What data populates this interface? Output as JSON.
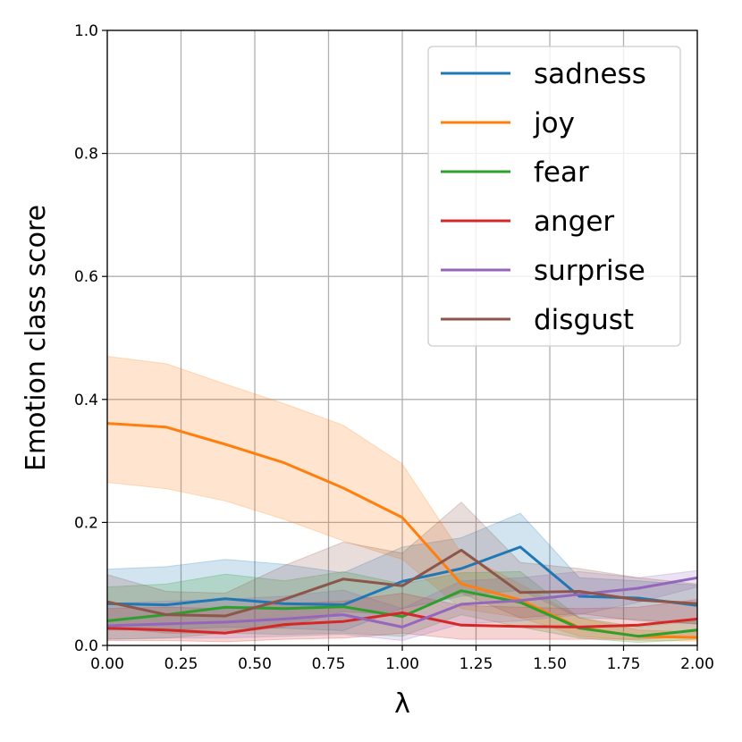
{
  "chart_data": {
    "type": "line",
    "title": "",
    "xlabel": "λ",
    "ylabel": "Emotion class score",
    "xlim": [
      0,
      2
    ],
    "ylim": [
      0,
      1
    ],
    "x_ticks": [
      "0.00",
      "0.25",
      "0.50",
      "0.75",
      "1.00",
      "1.25",
      "1.50",
      "1.75",
      "2.00"
    ],
    "y_ticks": [
      "0.0",
      "0.2",
      "0.4",
      "0.6",
      "0.8",
      "1.0"
    ],
    "grid": true,
    "legend_position": "top-right",
    "x": [
      0,
      0.2,
      0.4,
      0.6,
      0.8,
      1.0,
      1.2,
      1.4,
      1.6,
      1.8,
      2.0
    ],
    "series": [
      {
        "name": "sadness",
        "color": "#1f77b4",
        "values": [
          0.068,
          0.066,
          0.076,
          0.068,
          0.066,
          0.104,
          0.125,
          0.16,
          0.08,
          0.077,
          0.065
        ],
        "upper": [
          0.124,
          0.128,
          0.14,
          0.132,
          0.118,
          0.16,
          0.175,
          0.215,
          0.11,
          0.105,
          0.098
        ],
        "lower": [
          0.025,
          0.025,
          0.03,
          0.028,
          0.024,
          0.06,
          0.08,
          0.09,
          0.045,
          0.042,
          0.035
        ]
      },
      {
        "name": "joy",
        "color": "#ff7f0e",
        "values": [
          0.361,
          0.355,
          0.327,
          0.297,
          0.256,
          0.208,
          0.1,
          0.074,
          0.029,
          0.015,
          0.013
        ],
        "upper": [
          0.47,
          0.458,
          0.425,
          0.393,
          0.358,
          0.295,
          0.15,
          0.1,
          0.045,
          0.025,
          0.022
        ],
        "lower": [
          0.265,
          0.255,
          0.235,
          0.205,
          0.17,
          0.14,
          0.06,
          0.045,
          0.015,
          0.008,
          0.007
        ]
      },
      {
        "name": "fear",
        "color": "#2ca02c",
        "values": [
          0.04,
          0.05,
          0.062,
          0.06,
          0.063,
          0.047,
          0.089,
          0.07,
          0.028,
          0.015,
          0.025
        ],
        "upper": [
          0.095,
          0.1,
          0.116,
          0.105,
          0.12,
          0.1,
          0.118,
          0.12,
          0.045,
          0.03,
          0.04
        ],
        "lower": [
          0.01,
          0.012,
          0.02,
          0.018,
          0.02,
          0.015,
          0.05,
          0.03,
          0.012,
          0.005,
          0.01
        ]
      },
      {
        "name": "anger",
        "color": "#d62728",
        "values": [
          0.028,
          0.025,
          0.02,
          0.034,
          0.039,
          0.053,
          0.033,
          0.031,
          0.03,
          0.033,
          0.043
        ],
        "upper": [
          0.06,
          0.062,
          0.06,
          0.068,
          0.072,
          0.085,
          0.065,
          0.062,
          0.06,
          0.062,
          0.075
        ],
        "lower": [
          0.008,
          0.008,
          0.006,
          0.01,
          0.012,
          0.02,
          0.01,
          0.01,
          0.01,
          0.01,
          0.015
        ]
      },
      {
        "name": "surprise",
        "color": "#9467bd",
        "values": [
          0.032,
          0.035,
          0.038,
          0.043,
          0.05,
          0.03,
          0.067,
          0.073,
          0.083,
          0.093,
          0.11
        ],
        "upper": [
          0.068,
          0.072,
          0.075,
          0.08,
          0.09,
          0.06,
          0.105,
          0.11,
          0.12,
          0.11,
          0.122
        ],
        "lower": [
          0.01,
          0.012,
          0.012,
          0.015,
          0.018,
          0.008,
          0.035,
          0.04,
          0.05,
          0.07,
          0.095
        ]
      },
      {
        "name": "disgust",
        "color": "#8c564b",
        "values": [
          0.071,
          0.05,
          0.048,
          0.075,
          0.108,
          0.097,
          0.155,
          0.086,
          0.088,
          0.074,
          0.068
        ],
        "upper": [
          0.115,
          0.088,
          0.085,
          0.13,
          0.168,
          0.15,
          0.233,
          0.135,
          0.125,
          0.11,
          0.1
        ],
        "lower": [
          0.03,
          0.02,
          0.02,
          0.03,
          0.055,
          0.05,
          0.085,
          0.045,
          0.052,
          0.04,
          0.035
        ]
      }
    ]
  }
}
